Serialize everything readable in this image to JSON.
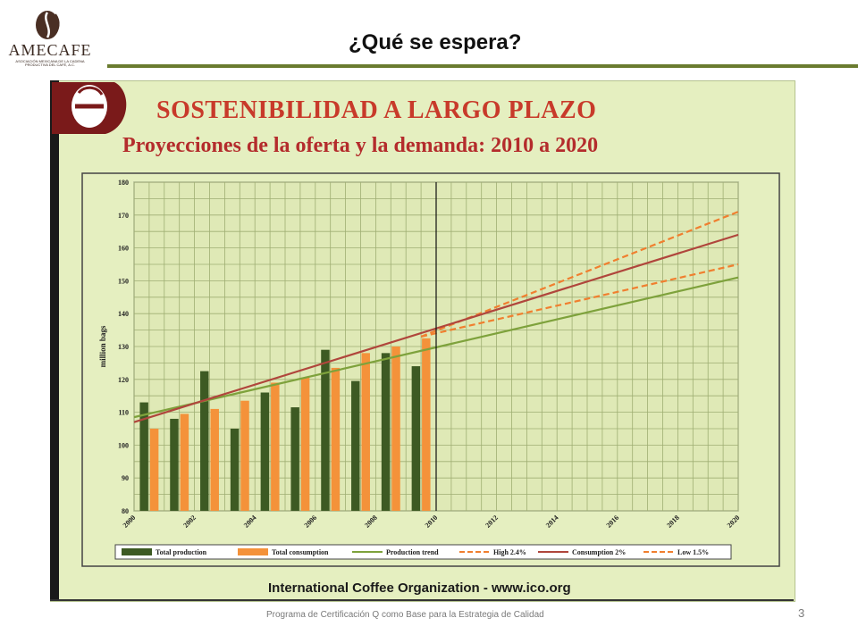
{
  "header": {
    "logo_brand": "AMECAFE",
    "logo_tagline": "ASOCIACIÓN MEXICANA DE LA CADENA PRODUCTIVA DEL CAFÉ, A.C.",
    "title": "¿Qué se espera?"
  },
  "footer": {
    "text": "Programa de Certificación Q como Base para la Estrategia de Calidad",
    "page_number": "3"
  },
  "colors": {
    "panel_bg": "#e5efc0",
    "production": "#3d5a23",
    "consumption": "#f4923a",
    "production_trend": "#7ea23c",
    "consumption_trend": "#b0463c",
    "projection_dashed": "#f07f2f",
    "title_red": "#c83a2a",
    "header_rule": "#6a7b2f"
  },
  "chart_data": {
    "type": "bar",
    "title": "SOSTENIBILIDAD A LARGO PLAZO",
    "subtitle": "Proyecciones de la oferta y la demanda:  2010 a 2020",
    "source": "International Coffee Organization  -  www.ico.org",
    "ylabel": "million bags",
    "ylim": [
      80,
      180
    ],
    "yticks": [
      80,
      90,
      100,
      110,
      120,
      130,
      140,
      150,
      160,
      170,
      180
    ],
    "xlim": [
      2000,
      2020
    ],
    "xticks": [
      2000,
      2002,
      2004,
      2006,
      2008,
      2010,
      2012,
      2014,
      2016,
      2018,
      2020
    ],
    "grid": true,
    "divider_year": 2010,
    "legend_position": "bottom",
    "categories": [
      2000,
      2001,
      2002,
      2003,
      2004,
      2005,
      2006,
      2007,
      2008,
      2009
    ],
    "series": [
      {
        "name": "Total production",
        "kind": "bar",
        "values": [
          113,
          108,
          122.5,
          105,
          116,
          111.5,
          129,
          119.5,
          128,
          124
        ]
      },
      {
        "name": "Total consumption",
        "kind": "bar",
        "values": [
          105,
          109.5,
          111,
          113.5,
          119,
          120.5,
          123.5,
          128,
          130,
          132.5
        ]
      },
      {
        "name": "Production trend",
        "kind": "line",
        "style": "solid",
        "x": [
          2000,
          2020
        ],
        "y": [
          108.5,
          151
        ]
      },
      {
        "name": "High 2.4%",
        "kind": "line",
        "style": "dashed",
        "x": [
          2009.5,
          2020
        ],
        "y": [
          133,
          171
        ]
      },
      {
        "name": "Consumption 2%",
        "kind": "line",
        "style": "solid",
        "x": [
          2000,
          2020
        ],
        "y": [
          107,
          164
        ]
      },
      {
        "name": "Low 1.5%",
        "kind": "line",
        "style": "dashed",
        "x": [
          2009.5,
          2020
        ],
        "y": [
          133,
          155
        ]
      }
    ]
  }
}
